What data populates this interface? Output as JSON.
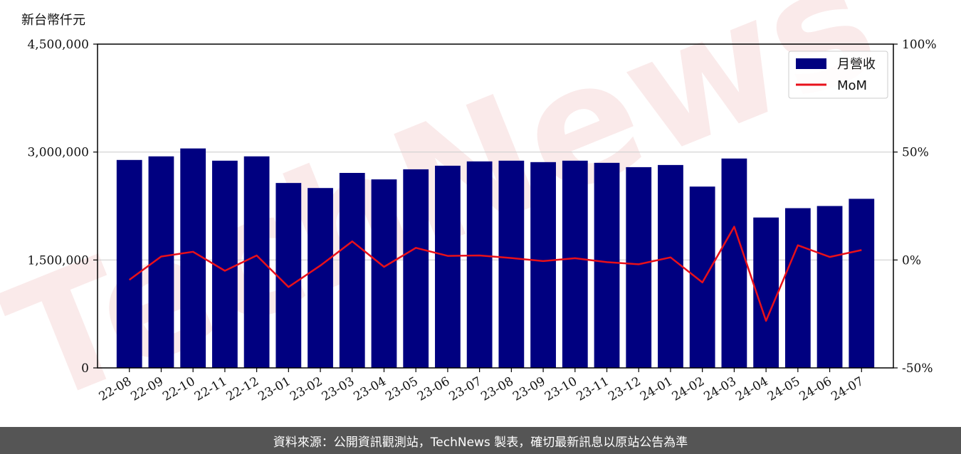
{
  "chart_data": {
    "type": "bar",
    "y_unit_label": "新台幣仟元",
    "categories": [
      "22-08",
      "22-09",
      "22-10",
      "22-11",
      "22-12",
      "23-01",
      "23-02",
      "23-03",
      "23-04",
      "23-05",
      "23-06",
      "23-07",
      "23-08",
      "23-09",
      "23-10",
      "23-11",
      "23-12",
      "24-01",
      "24-02",
      "24-03",
      "24-04",
      "24-05",
      "24-06",
      "24-07"
    ],
    "series": [
      {
        "name": "月營收",
        "kind": "bar",
        "axis": "left",
        "color": "#000080",
        "values": [
          2890000,
          2940000,
          3050000,
          2880000,
          2940000,
          2570000,
          2500000,
          2710000,
          2620000,
          2760000,
          2810000,
          2870000,
          2880000,
          2860000,
          2880000,
          2850000,
          2790000,
          2820000,
          2520000,
          2910000,
          2090000,
          2220000,
          2250000,
          2350000
        ]
      },
      {
        "name": "MoM",
        "kind": "line",
        "axis": "right",
        "color": "#e8101a",
        "values": [
          -9.2,
          1.6,
          3.8,
          -5.0,
          2.1,
          -12.5,
          -2.6,
          8.6,
          -3.2,
          5.6,
          1.9,
          2.1,
          0.9,
          -0.5,
          0.8,
          -1.0,
          -2.0,
          1.2,
          -10.4,
          15.4,
          -28.2,
          6.8,
          1.4,
          4.6
        ]
      }
    ],
    "y_left": {
      "min": 0,
      "max": 4500000,
      "ticks": [
        0,
        1500000,
        3000000,
        4500000
      ],
      "tick_labels": [
        "0",
        "1,500,000",
        "3,000,000",
        "4,500,000"
      ]
    },
    "y_right": {
      "min": -50,
      "max": 100,
      "ticks": [
        -50,
        0,
        50,
        100
      ],
      "tick_labels": [
        "-50%",
        "0%",
        "50%",
        "100%"
      ]
    },
    "grid": "horizontal",
    "legend_placement": "top-right",
    "watermark": "TechNews"
  },
  "footer": {
    "source_text": "資料來源：公開資訊觀測站，TechNews 製表，確切最新訊息以原站公告為準"
  }
}
